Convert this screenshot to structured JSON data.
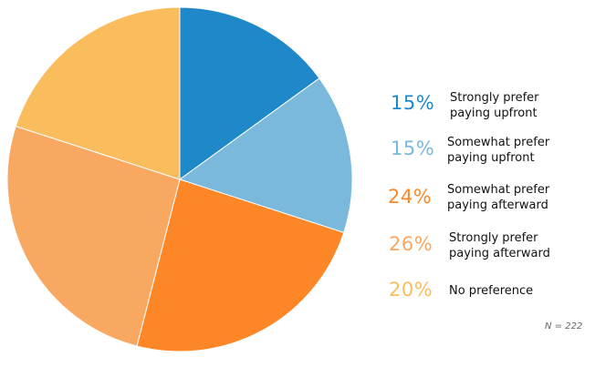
{
  "chart_data": {
    "type": "pie",
    "title": "",
    "slices": [
      {
        "label": "Strongly prefer\npaying upfront",
        "percent_label": "15%",
        "value": 15,
        "color": "#1f88c9"
      },
      {
        "label": "Somewhat prefer\npaying upfront",
        "percent_label": "15%",
        "value": 15,
        "color": "#7ab9dc"
      },
      {
        "label": "Somewhat prefer\npaying afterward",
        "percent_label": "24%",
        "value": 24,
        "color": "#fd8726"
      },
      {
        "label": "Strongly prefer\npaying afterward",
        "percent_label": "26%",
        "value": 26,
        "color": "#f9a862"
      },
      {
        "label": "No preference",
        "percent_label": "20%",
        "value": 20,
        "color": "#f9bd5e"
      }
    ],
    "start_angle_deg": 0,
    "direction": "clockwise",
    "legend": "right",
    "note": "N = 222"
  }
}
